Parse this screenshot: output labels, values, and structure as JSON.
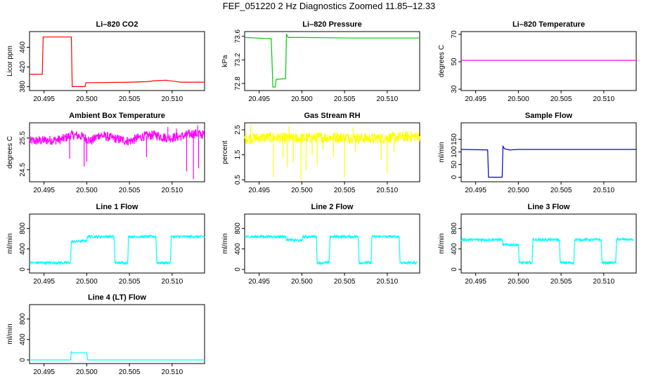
{
  "title": "FEF_051220  2 Hz Diagnostics Zoomed 11.85–12.33",
  "chart_data": [
    {
      "type": "line",
      "title": "Li–820 CO2",
      "ylabel": "Licor ppm",
      "color": "#ff0000",
      "xlim": [
        20.4933,
        20.5138
      ],
      "ylim": [
        372,
        492
      ],
      "xticks": [
        "20.495",
        "20.500",
        "20.505",
        "20.510"
      ],
      "xtick_values": [
        20.495,
        20.5,
        20.505,
        20.51
      ],
      "yticks": [
        "380",
        "420",
        "460"
      ],
      "ytick_values": [
        380,
        420,
        460
      ],
      "x": [
        20.4933,
        20.4948,
        20.4949,
        20.4982,
        20.4983,
        20.4998,
        20.4999,
        20.501,
        20.505,
        20.507,
        20.508,
        20.5093,
        20.511,
        20.5138
      ],
      "y": [
        405,
        405,
        481,
        481,
        380,
        380,
        388,
        388,
        389,
        390,
        392,
        393,
        389,
        389
      ]
    },
    {
      "type": "line",
      "title": "Li–820 Pressure",
      "ylabel": "kPa",
      "color": "#00cc00",
      "xlim": [
        20.4933,
        20.5138
      ],
      "ylim": [
        72.68,
        73.68
      ],
      "xticks": [
        "20.495",
        "20.500",
        "20.505",
        "20.510"
      ],
      "xtick_values": [
        20.495,
        20.5,
        20.505,
        20.51
      ],
      "yticks": [
        "72.8",
        "73.2",
        "73.6"
      ],
      "ytick_values": [
        72.8,
        73.2,
        73.6
      ],
      "x": [
        20.4933,
        20.4964,
        20.4965,
        20.4966,
        20.4969,
        20.497,
        20.4981,
        20.4982,
        20.4984,
        20.499,
        20.5,
        20.506,
        20.5138
      ],
      "y": [
        73.58,
        73.56,
        73.2,
        72.74,
        72.74,
        72.87,
        72.88,
        73.64,
        73.58,
        73.58,
        73.58,
        73.57,
        73.57
      ]
    },
    {
      "type": "line",
      "title": "Li–820 Temperature",
      "ylabel": "degrees C",
      "color": "#ff00ff",
      "xlim": [
        20.4933,
        20.5138
      ],
      "ylim": [
        29,
        72
      ],
      "xticks": [
        "20.495",
        "20.500",
        "20.505",
        "20.510"
      ],
      "xtick_values": [
        20.495,
        20.5,
        20.505,
        20.51
      ],
      "yticks": [
        "30",
        "50",
        "70"
      ],
      "ytick_values": [
        30,
        50,
        70
      ],
      "x": [
        20.4933,
        20.5138
      ],
      "y": [
        51,
        51
      ]
    },
    {
      "type": "line",
      "title": "Ambient Box Temperature",
      "ylabel": "degrees C",
      "color": "#ff00ff",
      "xlim": [
        20.4933,
        20.5138
      ],
      "ylim": [
        24.12,
        25.98
      ],
      "xticks": [
        "20.495",
        "20.500",
        "20.505",
        "20.510"
      ],
      "xtick_values": [
        20.495,
        20.5,
        20.505,
        20.51
      ],
      "yticks": [
        "24.5",
        "25.5"
      ],
      "ytick_values": [
        24.5,
        25.5
      ],
      "x": [
        20.4933,
        20.497,
        20.4983,
        20.4995,
        20.5005,
        20.5015,
        20.503,
        20.505,
        20.5065,
        20.508,
        20.5095,
        20.511,
        20.5125,
        20.5138
      ],
      "y": [
        25.4,
        25.45,
        25.6,
        25.55,
        25.4,
        25.6,
        25.5,
        25.4,
        25.55,
        25.6,
        25.5,
        25.55,
        25.65,
        25.6
      ],
      "noise": 0.15,
      "spikes_down": [
        [
          20.498,
          24.85
        ],
        [
          20.4997,
          24.6
        ],
        [
          20.5,
          24.75
        ],
        [
          20.507,
          24.9
        ],
        [
          20.5117,
          24.45
        ],
        [
          20.5125,
          24.2
        ],
        [
          20.5131,
          24.55
        ]
      ],
      "spikes_up": [
        [
          20.5095,
          25.85
        ],
        [
          20.5105,
          25.8
        ],
        [
          20.513,
          25.9
        ]
      ]
    },
    {
      "type": "line",
      "title": "Gas Stream RH",
      "ylabel": "percent",
      "color": "#ffff00",
      "xlim": [
        20.4933,
        20.5138
      ],
      "ylim": [
        0.42,
        2.78
      ],
      "xticks": [
        "20.495",
        "20.500",
        "20.505",
        "20.510"
      ],
      "xtick_values": [
        20.495,
        20.5,
        20.505,
        20.51
      ],
      "yticks": [
        "0.5",
        "1.5",
        "2.5"
      ],
      "ytick_values": [
        0.5,
        1.5,
        2.5
      ],
      "x": [
        20.4933,
        20.496,
        20.499,
        20.502,
        20.505,
        20.508,
        20.511,
        20.5138
      ],
      "y": [
        2.15,
        2.2,
        2.15,
        2.2,
        2.2,
        2.15,
        2.2,
        2.25
      ],
      "noise": 0.22,
      "spikes_down": [
        [
          20.4967,
          0.6
        ],
        [
          20.4978,
          1.4
        ],
        [
          20.4983,
          1.0
        ],
        [
          20.499,
          1.2
        ],
        [
          20.4999,
          0.5
        ],
        [
          20.5005,
          0.9
        ],
        [
          20.5012,
          1.5
        ],
        [
          20.5018,
          1.1
        ],
        [
          20.5025,
          1.7
        ],
        [
          20.5037,
          1.4
        ],
        [
          20.505,
          0.6
        ],
        [
          20.5063,
          1.6
        ],
        [
          20.5093,
          1.3
        ],
        [
          20.51,
          0.75
        ],
        [
          20.5108,
          1.6
        ]
      ],
      "spikes_up": [
        [
          20.494,
          2.7
        ],
        [
          20.4985,
          2.65
        ],
        [
          20.506,
          2.6
        ]
      ]
    },
    {
      "type": "line",
      "title": "Sample Flow",
      "ylabel": "ml/min",
      "color": "#0000cc",
      "xlim": [
        20.4933,
        20.5138
      ],
      "ylim": [
        -18,
        215
      ],
      "xticks": [
        "20.495",
        "20.500",
        "20.505",
        "20.510"
      ],
      "xtick_values": [
        20.495,
        20.5,
        20.505,
        20.51
      ],
      "yticks": [
        "0",
        "50",
        "100",
        "150"
      ],
      "ytick_values": [
        0,
        50,
        100,
        150
      ],
      "x": [
        20.4933,
        20.4964,
        20.4965,
        20.4981,
        20.4982,
        20.4984,
        20.499,
        20.5,
        20.5138
      ],
      "y": [
        110,
        108,
        0,
        0,
        122,
        112,
        108,
        110,
        110
      ]
    },
    {
      "type": "line",
      "title": "Line 1 Flow",
      "ylabel": "ml/min",
      "color": "#00ffff",
      "xlim": [
        20.4933,
        20.5138
      ],
      "ylim": [
        -70,
        1080
      ],
      "xticks": [
        "20.495",
        "20.500",
        "20.505",
        "20.510"
      ],
      "xtick_values": [
        20.495,
        20.5,
        20.505,
        20.51
      ],
      "yticks": [
        "0",
        "400",
        "800"
      ],
      "ytick_values": [
        0,
        400,
        800
      ],
      "x": [
        20.4933,
        20.4981,
        20.4982,
        20.5,
        20.5001,
        20.5032,
        20.5033,
        20.5048,
        20.5049,
        20.5081,
        20.5082,
        20.5098,
        20.5099,
        20.5138
      ],
      "y": [
        130,
        130,
        540,
        560,
        640,
        640,
        130,
        130,
        640,
        640,
        130,
        130,
        640,
        640
      ],
      "noise": 25
    },
    {
      "type": "line",
      "title": "Line 2 Flow",
      "ylabel": "ml/min",
      "color": "#00ffff",
      "xlim": [
        20.4933,
        20.5138
      ],
      "ylim": [
        -70,
        1080
      ],
      "xticks": [
        "20.495",
        "20.500",
        "20.505",
        "20.510"
      ],
      "xtick_values": [
        20.495,
        20.5,
        20.505,
        20.51
      ],
      "yticks": [
        "0",
        "400",
        "800"
      ],
      "ytick_values": [
        0,
        400,
        800
      ],
      "x": [
        20.4933,
        20.4981,
        20.4982,
        20.5,
        20.5001,
        20.5017,
        20.5018,
        20.5032,
        20.5033,
        20.5066,
        20.5067,
        20.5081,
        20.5082,
        20.5114,
        20.5115,
        20.5135
      ],
      "y": [
        640,
        640,
        580,
        560,
        640,
        640,
        130,
        130,
        640,
        640,
        130,
        130,
        640,
        640,
        130,
        130
      ],
      "noise": 25
    },
    {
      "type": "line",
      "title": "Line 3 Flow",
      "ylabel": "ml/min",
      "color": "#00ffff",
      "xlim": [
        20.4933,
        20.5138
      ],
      "ylim": [
        -70,
        1080
      ],
      "xticks": [
        "20.495",
        "20.500",
        "20.505",
        "20.510"
      ],
      "xtick_values": [
        20.495,
        20.5,
        20.505,
        20.51
      ],
      "yticks": [
        "0",
        "400",
        "800"
      ],
      "ytick_values": [
        0,
        400,
        800
      ],
      "x": [
        20.4933,
        20.4981,
        20.4982,
        20.5,
        20.5001,
        20.5016,
        20.5017,
        20.5048,
        20.5049,
        20.5065,
        20.5066,
        20.5097,
        20.5098,
        20.5114,
        20.5115,
        20.5135
      ],
      "y": [
        580,
        580,
        480,
        480,
        130,
        130,
        580,
        580,
        130,
        130,
        580,
        580,
        130,
        130,
        590,
        580
      ],
      "noise": 25
    },
    {
      "type": "line",
      "title": "Line 4 (LT) Flow",
      "ylabel": "ml/min",
      "color": "#00ffff",
      "xlim": [
        20.4933,
        20.5138
      ],
      "ylim": [
        -70,
        1080
      ],
      "xticks": [
        "20.495",
        "20.500",
        "20.505",
        "20.510"
      ],
      "xtick_values": [
        20.495,
        20.5,
        20.505,
        20.51
      ],
      "yticks": [
        "0",
        "400",
        "800"
      ],
      "ytick_values": [
        0,
        400,
        800
      ],
      "x": [
        20.4933,
        20.4981,
        20.4982,
        20.4984,
        20.5,
        20.5001,
        20.5138
      ],
      "y": [
        0,
        0,
        160,
        140,
        140,
        0,
        0
      ]
    }
  ]
}
